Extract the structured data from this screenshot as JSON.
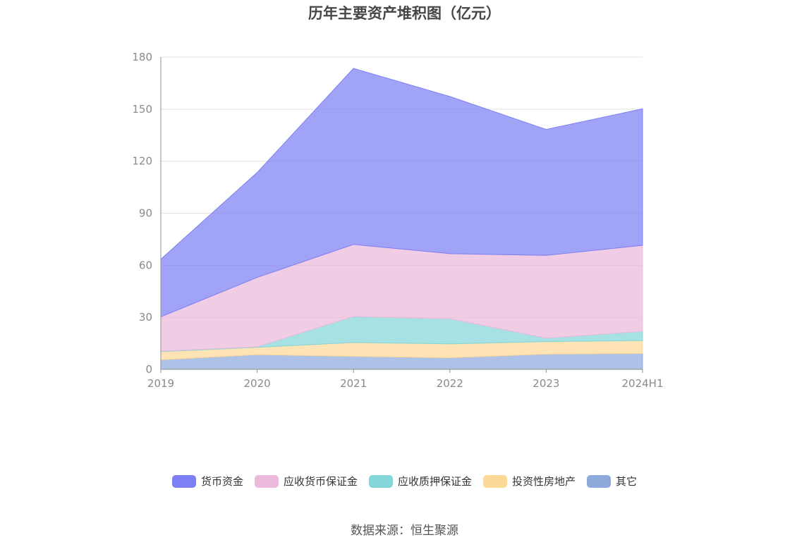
{
  "chart_data": {
    "type": "area",
    "stacked": true,
    "title": "历年主要资产堆积图（亿元）",
    "x": [
      "2019",
      "2020",
      "2021",
      "2022",
      "2023",
      "2024H1"
    ],
    "y_ticks": [
      "0",
      "30",
      "60",
      "90",
      "120",
      "150",
      "180"
    ],
    "ylim": [
      0,
      180
    ],
    "grid": true,
    "legend_position": "bottom",
    "series": [
      {
        "name": "其它",
        "values": [
          5.5,
          8.5,
          7.5,
          6.7,
          8.8,
          9.2
        ],
        "color": "#8eaadc"
      },
      {
        "name": "投资性房地产",
        "values": [
          4.7,
          4.2,
          8.0,
          8.0,
          7.2,
          7.4
        ],
        "color": "#fdd998"
      },
      {
        "name": "应收质押保证金",
        "values": [
          0.3,
          0.3,
          15.0,
          14.5,
          2.0,
          5.4
        ],
        "color": "#84d6d9"
      },
      {
        "name": "应收货币保证金",
        "values": [
          19.8,
          40.0,
          41.5,
          37.5,
          47.7,
          49.5
        ],
        "color": "#ecbadb"
      },
      {
        "name": "货币资金",
        "values": [
          33.2,
          60.5,
          101.5,
          90.6,
          72.6,
          78.7
        ],
        "color": "#7d80f4"
      }
    ]
  },
  "legend": {
    "items": [
      {
        "label": "货币资金",
        "color": "#7d80f4"
      },
      {
        "label": "应收货币保证金",
        "color": "#ecbadb"
      },
      {
        "label": "应收质押保证金",
        "color": "#84d6d9"
      },
      {
        "label": "投资性房地产",
        "color": "#fdd998"
      },
      {
        "label": "其它",
        "color": "#8eaadc"
      }
    ]
  },
  "source": "数据来源：恒生聚源"
}
